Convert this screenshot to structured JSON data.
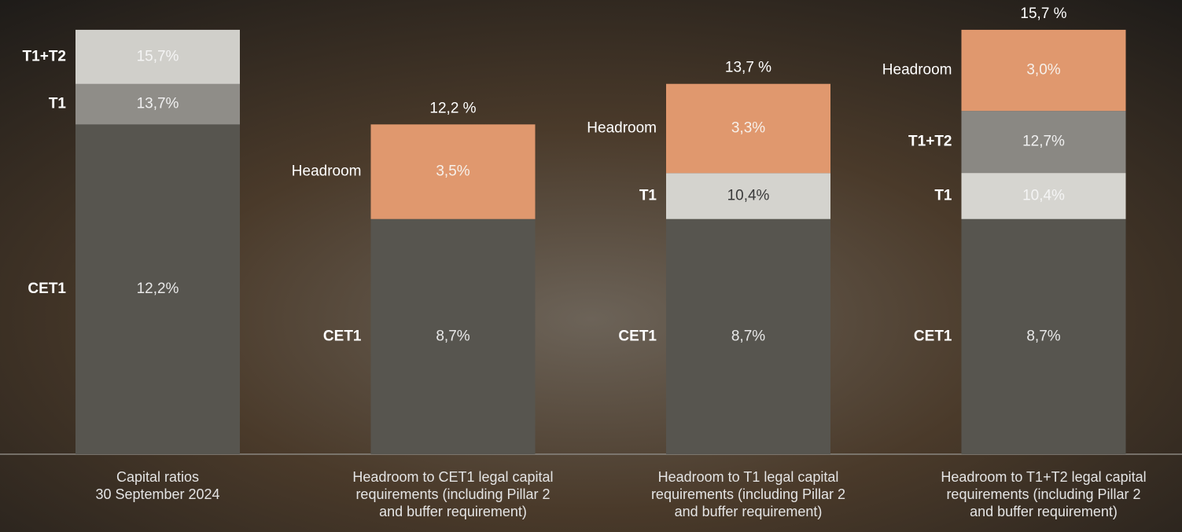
{
  "chart_data": {
    "type": "bar",
    "ylim": [
      0,
      16
    ],
    "categories": [
      [
        "Capital ratios",
        "30 September 2024"
      ],
      [
        "Headroom to CET1 legal capital",
        "requirements (including  Pillar 2",
        "and buffer requirement)"
      ],
      [
        "Headroom to T1 legal capital",
        "requirements (including  Pillar 2",
        "and buffer requirement)"
      ],
      [
        "Headroom to T1+T2 legal capital",
        "requirements (including  Pillar 2",
        "and buffer requirement)"
      ]
    ],
    "bars": [
      {
        "levels": [
          {
            "name": "CET1",
            "value": 12.2,
            "label": "12,2%",
            "color": "#57554f",
            "label_color": "#e8e8e8"
          },
          {
            "name": "T1",
            "value": 13.7,
            "label": "13,7%",
            "color": "#8f8d88",
            "label_color": "#f0f0f0"
          },
          {
            "name": "T1+T2",
            "value": 15.7,
            "label": "15,7%",
            "color": "#d0cfca",
            "label_color": "#f4f4f4"
          }
        ]
      },
      {
        "levels": [
          {
            "name": "CET1",
            "value": 8.7,
            "label": "8,7%",
            "color": "#57554f",
            "label_color": "#e8e8e8"
          }
        ],
        "headroom": {
          "name": "Headroom",
          "value": 3.5,
          "label": "3,5%",
          "color": "#e0986e",
          "label_color": "#f6f0ea"
        },
        "total": {
          "value": 12.2,
          "label": "12,2 %"
        }
      },
      {
        "levels": [
          {
            "name": "CET1",
            "value": 8.7,
            "label": "8,7%",
            "color": "#57554f",
            "label_color": "#e8e8e8"
          },
          {
            "name": "T1",
            "value": 10.4,
            "label": "10,4%",
            "color": "#d4d3ce",
            "label_color": "#3a3a3a"
          }
        ],
        "headroom": {
          "name": "Headroom",
          "value": 3.3,
          "label": "3,3%",
          "color": "#e0986e",
          "label_color": "#f6f0ea"
        },
        "total": {
          "value": 13.7,
          "label": "13,7 %"
        }
      },
      {
        "levels": [
          {
            "name": "CET1",
            "value": 8.7,
            "label": "8,7%",
            "color": "#57554f",
            "label_color": "#e8e8e8"
          },
          {
            "name": "T1",
            "value": 10.4,
            "label": "10,4%",
            "color": "#d6d5d0",
            "label_color": "#f4f4f4"
          },
          {
            "name": "T1+T2",
            "value": 12.7,
            "label": "12,7%",
            "color": "#8a8883",
            "label_color": "#f0f0f0"
          }
        ],
        "headroom": {
          "name": "Headroom",
          "value": 3.0,
          "label": "3,0%",
          "color": "#e0986e",
          "label_color": "#f6f0ea"
        },
        "total": {
          "value": 15.7,
          "label": "15,7 %"
        }
      }
    ]
  }
}
